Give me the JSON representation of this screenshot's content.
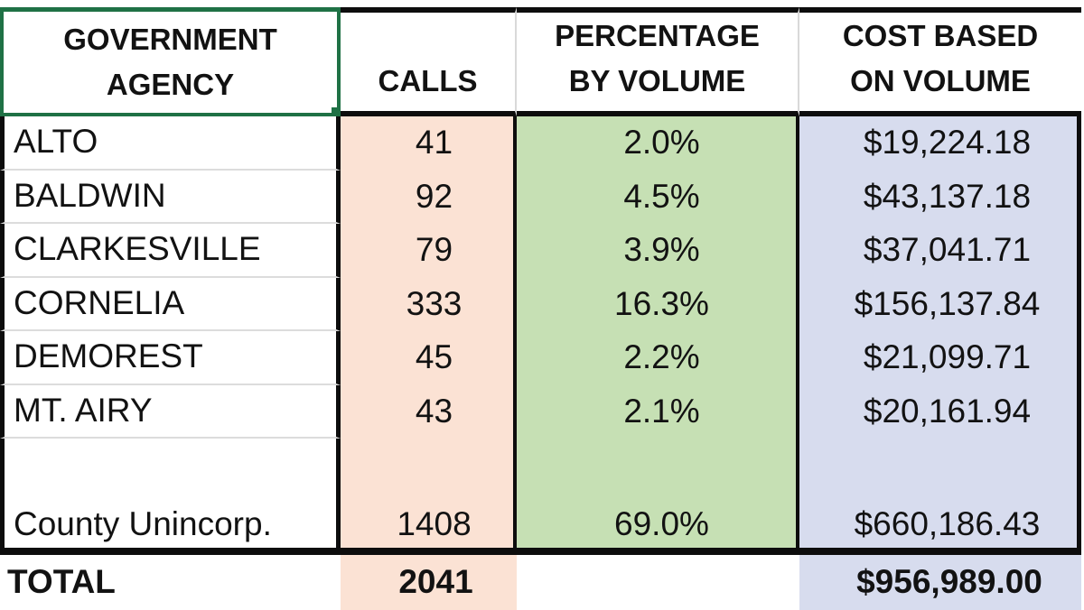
{
  "table": {
    "header": {
      "agency": [
        "GOVERNMENT",
        "AGENCY"
      ],
      "calls": [
        "CALLS"
      ],
      "pct": [
        "PERCENTAGE",
        "BY VOLUME"
      ],
      "cost": [
        "COST BASED",
        "ON VOLUME"
      ]
    },
    "rows": [
      {
        "agency": "ALTO",
        "calls": "41",
        "pct": "2.0%",
        "cost": "$19,224.18"
      },
      {
        "agency": "BALDWIN",
        "calls": "92",
        "pct": "4.5%",
        "cost": "$43,137.18"
      },
      {
        "agency": "CLARKESVILLE",
        "calls": "79",
        "pct": "3.9%",
        "cost": "$37,041.71"
      },
      {
        "agency": "CORNELIA",
        "calls": "333",
        "pct": "16.3%",
        "cost": "$156,137.84"
      },
      {
        "agency": "DEMOREST",
        "calls": "45",
        "pct": "2.2%",
        "cost": "$21,099.71"
      },
      {
        "agency": "MT. AIRY",
        "calls": "43",
        "pct": "2.1%",
        "cost": "$20,161.94"
      },
      {
        "agency": "County Unincorp.",
        "calls": "1408",
        "pct": "69.0%",
        "cost": "$660,186.43"
      }
    ],
    "total": {
      "label": "TOTAL",
      "calls": "2041",
      "pct": "",
      "cost": "$956,989.00"
    }
  },
  "colors": {
    "calls_column_fill": "#fbe2d4",
    "percentage_column_fill": "#c6e0b4",
    "cost_column_fill": "#d7dcee",
    "selection_border_green": "#1f7145",
    "grid_border_black": "#0d0d0d",
    "row_divider_gray": "#dcdcdc"
  }
}
